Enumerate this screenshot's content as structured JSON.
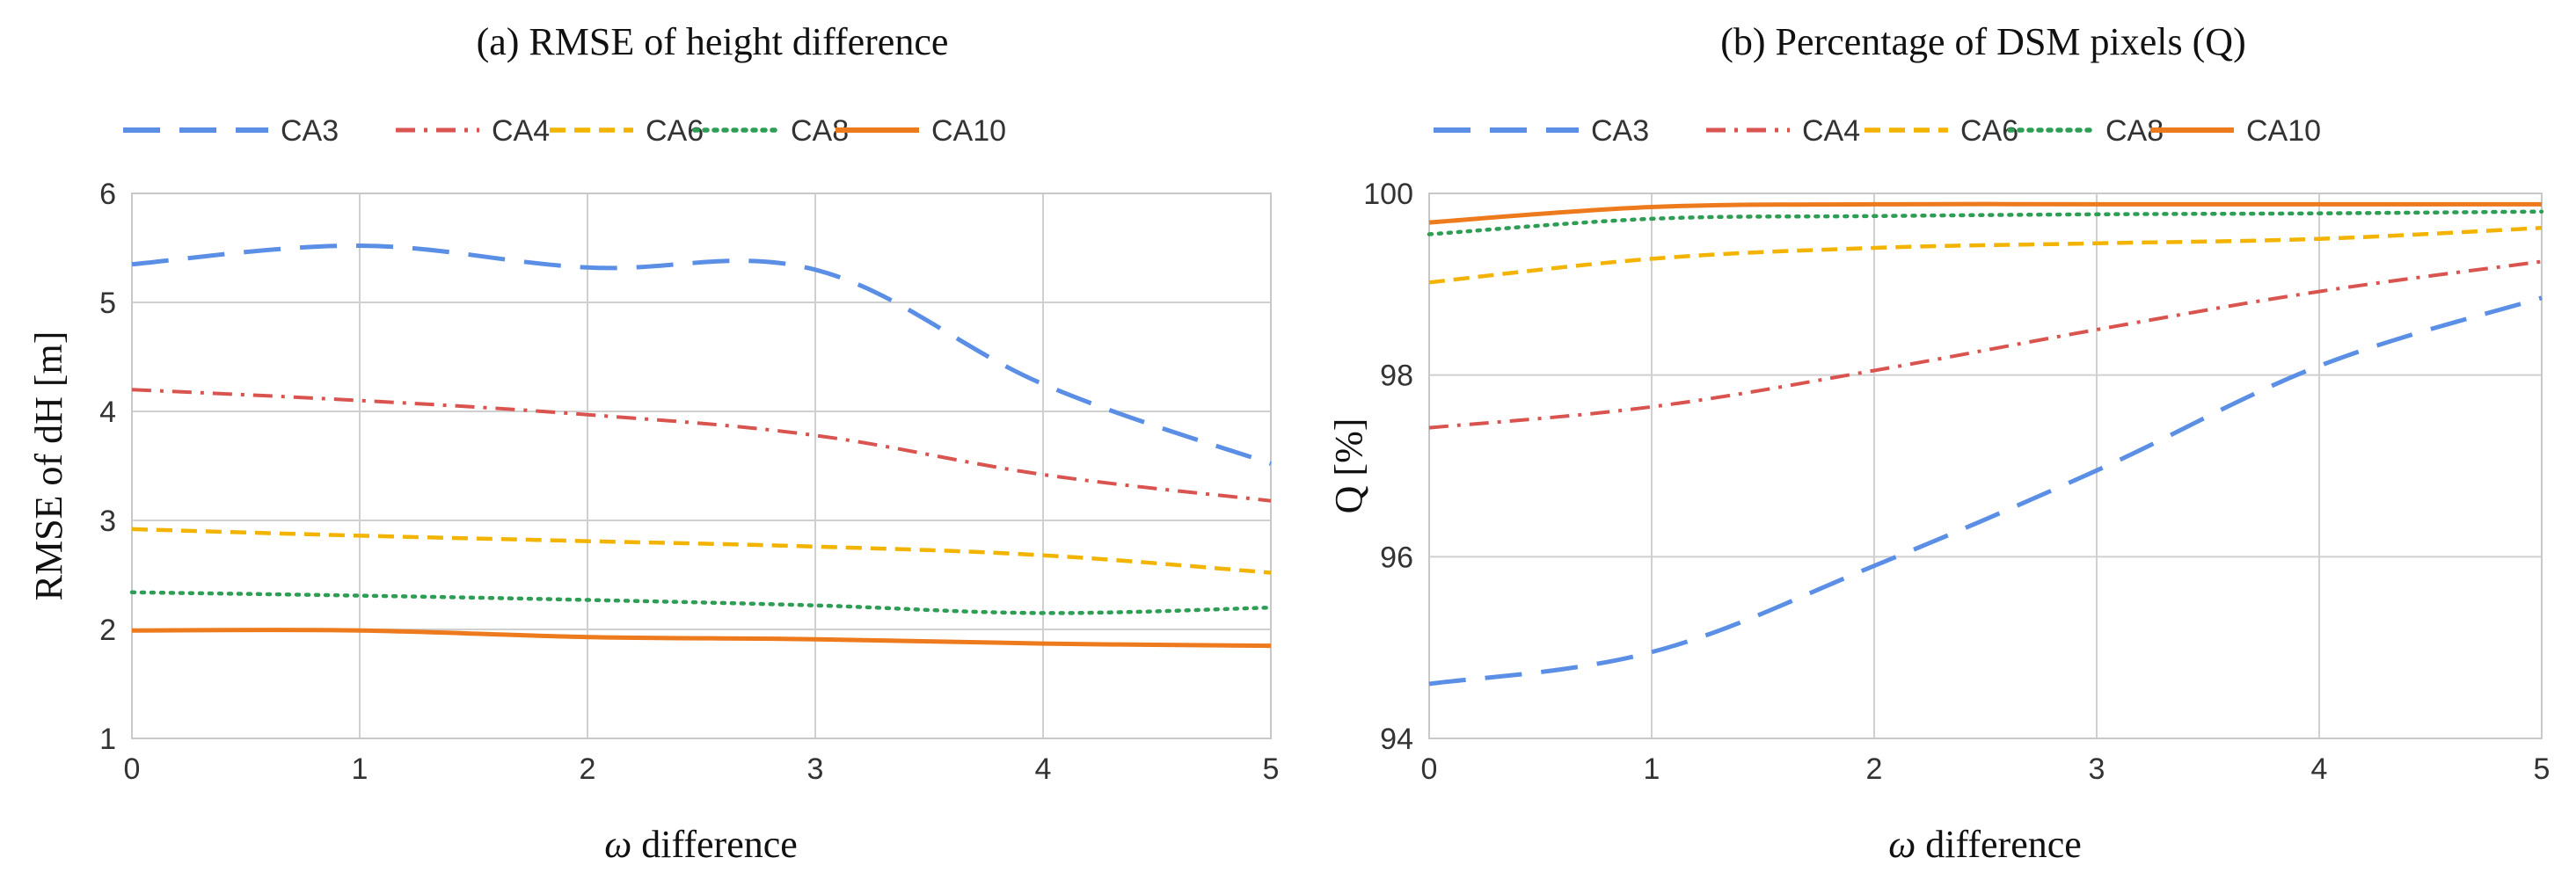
{
  "chart_data": [
    {
      "type": "line",
      "title": "(a) RMSE of height difference",
      "xlabel_symbol": "ω",
      "xlabel_text": " difference",
      "ylabel": "RMSE of dH  [m]",
      "xlim": [
        0,
        5
      ],
      "ylim": [
        1,
        6
      ],
      "xticks": [
        0,
        1,
        2,
        3,
        4,
        5
      ],
      "yticks": [
        1,
        2,
        3,
        4,
        5,
        6
      ],
      "grid": true,
      "legend": "top",
      "x": [
        0,
        1,
        2,
        3,
        4,
        5
      ],
      "series": [
        {
          "name": "CA3",
          "values": [
            5.35,
            5.52,
            5.32,
            5.3,
            4.25,
            3.52
          ],
          "color": "#5b8fe6",
          "dash": "42,22",
          "width": 5
        },
        {
          "name": "CA4",
          "values": [
            4.2,
            4.1,
            3.97,
            3.78,
            3.42,
            3.18
          ],
          "color": "#d9534f",
          "dash": "22,10,4,10",
          "width": 4
        },
        {
          "name": "CA6",
          "values": [
            2.92,
            2.86,
            2.81,
            2.76,
            2.68,
            2.52
          ],
          "color": "#f2b400",
          "dash": "18,10",
          "width": 4.5
        },
        {
          "name": "CA8",
          "values": [
            2.34,
            2.31,
            2.27,
            2.22,
            2.15,
            2.2
          ],
          "color": "#2e9e55",
          "dash": "3,8",
          "width": 4.5
        },
        {
          "name": "CA10",
          "values": [
            1.99,
            1.99,
            1.93,
            1.91,
            1.87,
            1.85
          ],
          "color": "#ee7a1e",
          "dash": "",
          "width": 5
        }
      ]
    },
    {
      "type": "line",
      "title": "(b) Percentage of DSM pixels (Q)",
      "xlabel_symbol": "ω",
      "xlabel_text": " difference",
      "ylabel": "Q [%]",
      "xlim": [
        0,
        5
      ],
      "ylim": [
        94,
        100
      ],
      "xticks": [
        0,
        1,
        2,
        3,
        4,
        5
      ],
      "yticks": [
        94,
        96,
        98,
        100
      ],
      "grid": true,
      "legend": "top",
      "x": [
        0,
        1,
        2,
        3,
        4,
        5
      ],
      "series": [
        {
          "name": "CA3",
          "values": [
            94.6,
            94.95,
            95.9,
            96.95,
            98.1,
            98.85
          ],
          "color": "#5b8fe6",
          "dash": "42,22",
          "width": 5
        },
        {
          "name": "CA4",
          "values": [
            97.42,
            97.65,
            98.05,
            98.5,
            98.92,
            99.25
          ],
          "color": "#d9534f",
          "dash": "22,10,4,10",
          "width": 4
        },
        {
          "name": "CA6",
          "values": [
            99.02,
            99.28,
            99.4,
            99.45,
            99.5,
            99.62
          ],
          "color": "#f2b400",
          "dash": "18,10",
          "width": 4.5
        },
        {
          "name": "CA8",
          "values": [
            99.55,
            99.72,
            99.75,
            99.77,
            99.78,
            99.8
          ],
          "color": "#2e9e55",
          "dash": "3,8",
          "width": 4.5
        },
        {
          "name": "CA10",
          "values": [
            99.68,
            99.85,
            99.88,
            99.88,
            99.88,
            99.88
          ],
          "color": "#ee7a1e",
          "dash": "",
          "width": 5
        }
      ]
    }
  ]
}
